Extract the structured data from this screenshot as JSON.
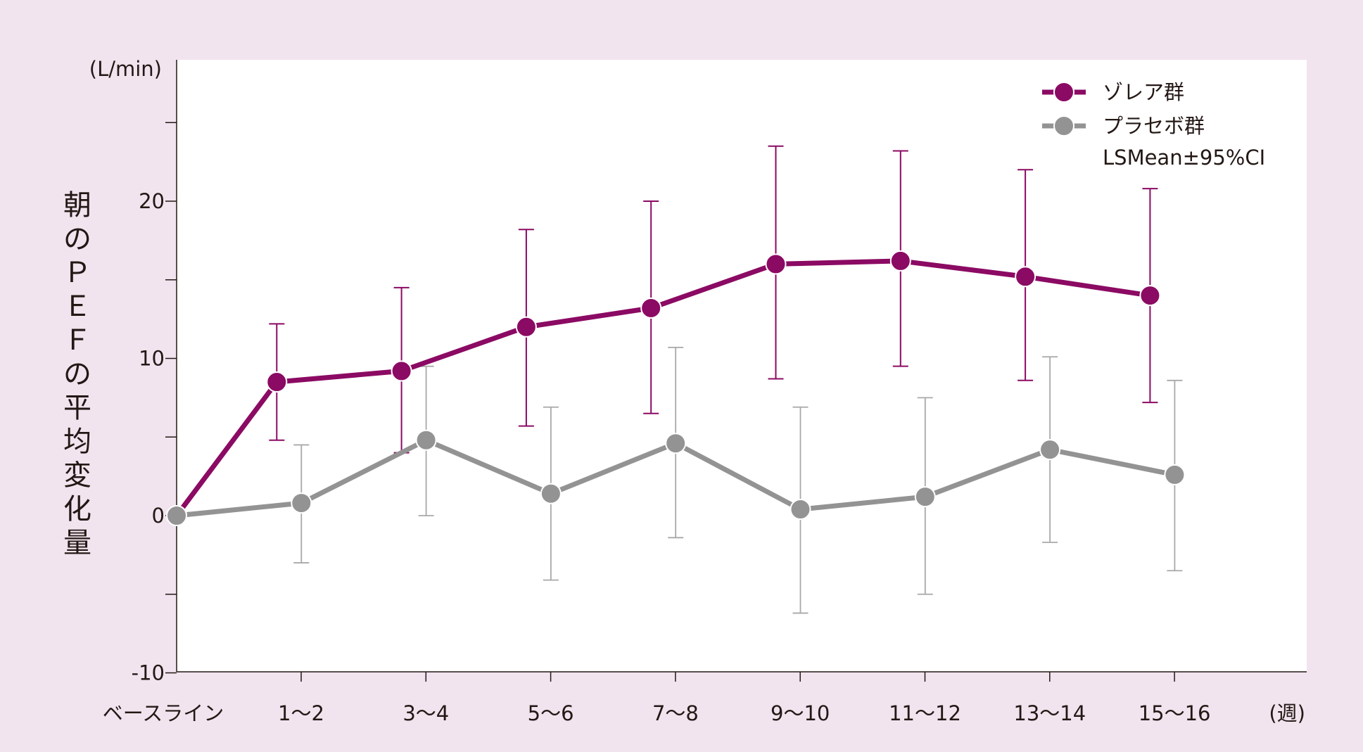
{
  "chart_data": {
    "type": "line",
    "ylabel": "朝のＰＥＦの平均変化量",
    "y_unit": "(L/min)",
    "x_unit": "(週)",
    "categories": [
      "ベースライン",
      "1～2",
      "3～4",
      "5～6",
      "7～8",
      "9～10",
      "11～12",
      "13～14",
      "15～16"
    ],
    "ylim": [
      -10,
      28
    ],
    "y_ticks": [
      -10,
      0,
      10,
      20
    ],
    "y_tick_labels": [
      "-10",
      "0",
      "10",
      "20"
    ],
    "error_bar_note": "LSMean±95%CI",
    "legend_position": "top-right",
    "grid": false,
    "series": [
      {
        "name": "ゾレア群",
        "color": "#8b0a63",
        "points": [
          {
            "x": "ベースライン",
            "y": 0,
            "lo": null,
            "hi": null
          },
          {
            "x": "1～2",
            "y": 8.5,
            "lo": 4.8,
            "hi": 12.2
          },
          {
            "x": "3～4",
            "y": 9.2,
            "lo": 4.0,
            "hi": 14.5
          },
          {
            "x": "5～6",
            "y": 12.0,
            "lo": 5.7,
            "hi": 18.2
          },
          {
            "x": "7～8",
            "y": 13.2,
            "lo": 6.5,
            "hi": 20.0
          },
          {
            "x": "9～10",
            "y": 16.0,
            "lo": 8.7,
            "hi": 23.5
          },
          {
            "x": "11～12",
            "y": 16.2,
            "lo": 9.5,
            "hi": 23.2
          },
          {
            "x": "13～14",
            "y": 15.2,
            "lo": 8.6,
            "hi": 22.0
          },
          {
            "x": "15～16",
            "y": 14.0,
            "lo": 7.2,
            "hi": 20.8
          }
        ]
      },
      {
        "name": "プラセボ群",
        "color": "#939393",
        "points": [
          {
            "x": "ベースライン",
            "y": 0,
            "lo": null,
            "hi": null
          },
          {
            "x": "1～2",
            "y": 0.8,
            "lo": -3.0,
            "hi": 4.5
          },
          {
            "x": "3～4",
            "y": 4.8,
            "lo": 0.0,
            "hi": 9.5
          },
          {
            "x": "5～6",
            "y": 1.4,
            "lo": -4.1,
            "hi": 6.9
          },
          {
            "x": "7～8",
            "y": 4.6,
            "lo": -1.4,
            "hi": 10.7
          },
          {
            "x": "9～10",
            "y": 0.4,
            "lo": -6.2,
            "hi": 6.9
          },
          {
            "x": "11～12",
            "y": 1.2,
            "lo": -5.0,
            "hi": 7.5
          },
          {
            "x": "13～14",
            "y": 4.2,
            "lo": -1.7,
            "hi": 10.1
          },
          {
            "x": "15～16",
            "y": 2.6,
            "lo": -3.5,
            "hi": 8.6
          }
        ]
      }
    ]
  }
}
